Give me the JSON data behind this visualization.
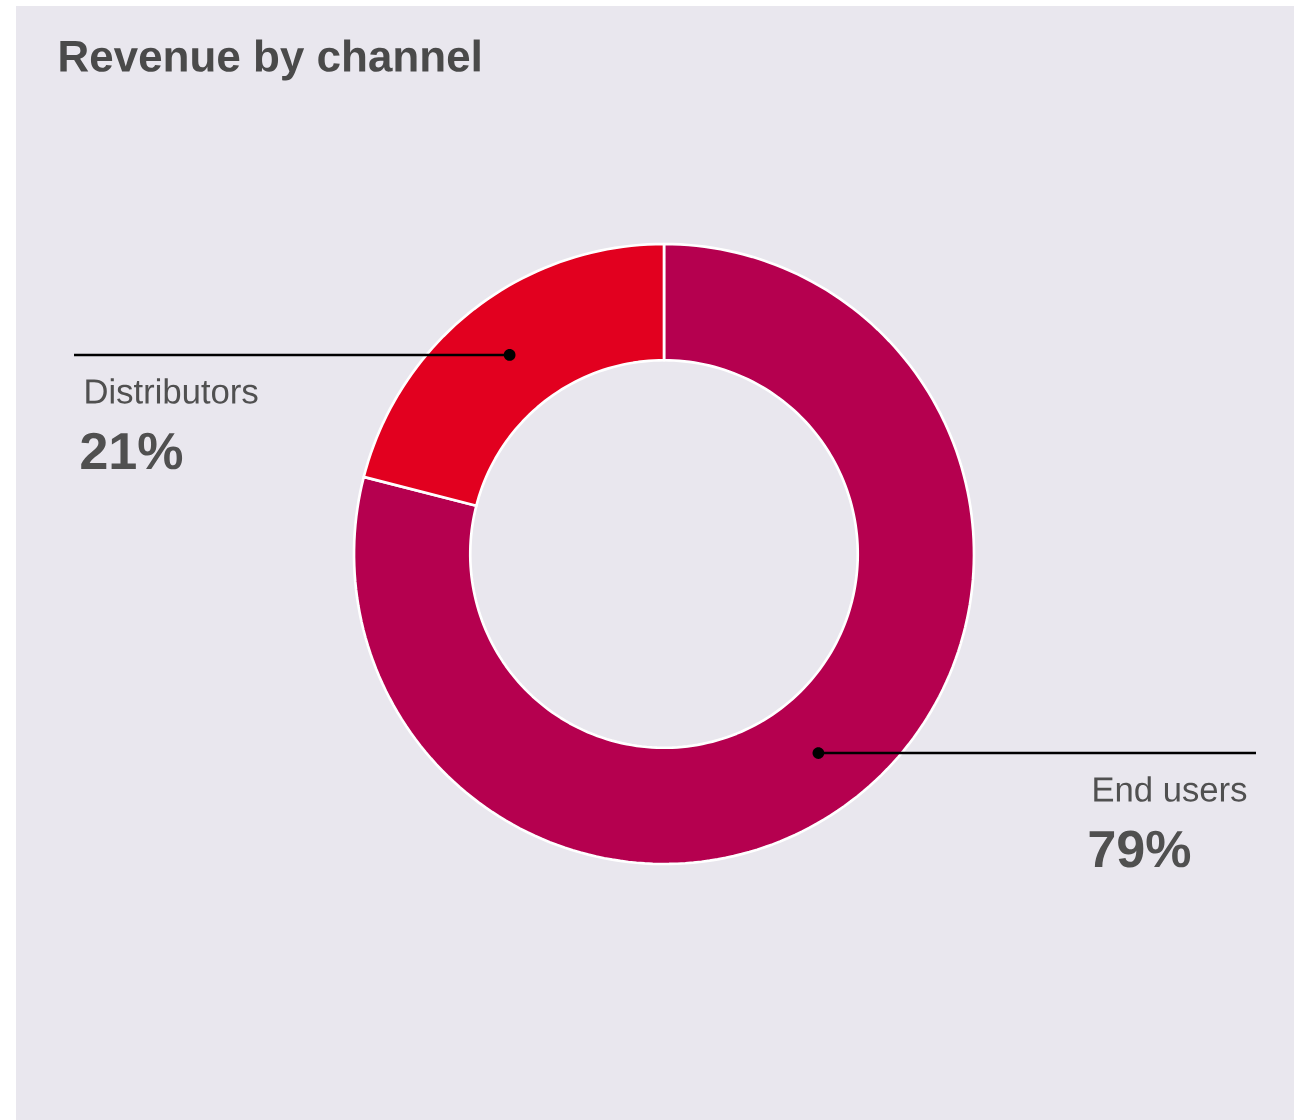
{
  "chart_data": {
    "type": "donut",
    "title": "Revenue by channel",
    "categories": [
      "End users",
      "Distributors"
    ],
    "values": [
      79,
      21
    ],
    "colors": [
      "#b5004f",
      "#e2001f"
    ],
    "value_labels": [
      "79%",
      "21%"
    ]
  }
}
